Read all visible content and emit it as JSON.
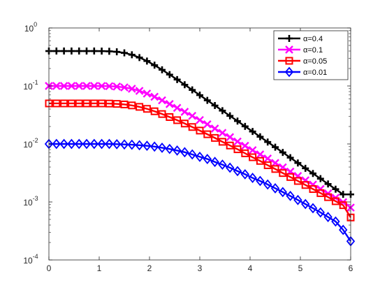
{
  "chart_data": {
    "type": "line",
    "x": [
      0,
      0.15,
      0.3,
      0.45,
      0.6,
      0.75,
      0.9,
      1.05,
      1.2,
      1.35,
      1.5,
      1.65,
      1.8,
      1.95,
      2.1,
      2.25,
      2.4,
      2.55,
      2.7,
      2.85,
      3.0,
      3.15,
      3.3,
      3.45,
      3.6,
      3.75,
      3.9,
      4.05,
      4.2,
      4.35,
      4.5,
      4.65,
      4.8,
      4.95,
      5.1,
      5.25,
      5.4,
      5.55,
      5.7,
      5.85,
      6.0
    ],
    "series": [
      {
        "name": "α=0.4",
        "color": "#000000",
        "marker": "plus",
        "values": [
          0.4,
          0.4,
          0.4,
          0.4,
          0.4,
          0.4,
          0.4,
          0.399,
          0.396,
          0.388,
          0.372,
          0.345,
          0.309,
          0.269,
          0.228,
          0.19,
          0.157,
          0.129,
          0.105,
          0.0855,
          0.0695,
          0.0565,
          0.046,
          0.0375,
          0.0305,
          0.0248,
          0.0201,
          0.0164,
          0.0133,
          0.0108,
          0.0088,
          0.00715,
          0.0058,
          0.0047,
          0.0038,
          0.0031,
          0.00252,
          0.00204,
          0.00166,
          0.00135,
          0.00135
        ]
      },
      {
        "name": "α=0.1",
        "color": "#ff00ff",
        "marker": "x",
        "values": [
          0.1,
          0.1,
          0.1,
          0.1,
          0.1,
          0.1,
          0.1,
          0.0999,
          0.0992,
          0.0976,
          0.0945,
          0.0895,
          0.0822,
          0.0738,
          0.065,
          0.0565,
          0.0488,
          0.0419,
          0.0358,
          0.0305,
          0.0258,
          0.0218,
          0.0184,
          0.0155,
          0.0131,
          0.011,
          0.0093,
          0.0078,
          0.0066,
          0.0056,
          0.0047,
          0.00395,
          0.00333,
          0.0028,
          0.00236,
          0.00199,
          0.00167,
          0.0014,
          0.00118,
          0.00099,
          0.0008
        ]
      },
      {
        "name": "α=0.05",
        "color": "#ff0000",
        "marker": "square",
        "values": [
          0.05,
          0.05,
          0.05,
          0.05,
          0.05,
          0.05,
          0.05,
          0.05,
          0.0497,
          0.0491,
          0.048,
          0.0462,
          0.0436,
          0.0403,
          0.0366,
          0.0328,
          0.0291,
          0.0257,
          0.0225,
          0.0196,
          0.017,
          0.0147,
          0.0127,
          0.0109,
          0.0094,
          0.0081,
          0.0069,
          0.0059,
          0.0051,
          0.0043,
          0.0037,
          0.00315,
          0.00269,
          0.0023,
          0.00196,
          0.00167,
          0.00142,
          0.00121,
          0.00103,
          0.00088,
          0.00054
        ]
      },
      {
        "name": "α=0.01",
        "color": "#0000ff",
        "marker": "diamond",
        "values": [
          0.01,
          0.01,
          0.01,
          0.01,
          0.01,
          0.01,
          0.01,
          0.01,
          0.01,
          0.0099,
          0.0098,
          0.0097,
          0.0095,
          0.0093,
          0.009,
          0.0086,
          0.0082,
          0.0077,
          0.0072,
          0.0066,
          0.006,
          0.0055,
          0.0049,
          0.0044,
          0.0039,
          0.0034,
          0.003,
          0.0026,
          0.0023,
          0.002,
          0.00172,
          0.00148,
          0.00127,
          0.00108,
          0.00092,
          0.00078,
          0.00066,
          0.00055,
          0.00046,
          0.00033,
          0.00021
        ]
      }
    ],
    "xlim": [
      0,
      6
    ],
    "ylim": [
      0.0001,
      1
    ],
    "yscale": "log",
    "xticks": [
      "0",
      "1",
      "2",
      "3",
      "4",
      "5",
      "6"
    ],
    "yticks": [
      {
        "base": "10",
        "exp": "0"
      },
      {
        "base": "10",
        "exp": "-1"
      },
      {
        "base": "10",
        "exp": "-2"
      },
      {
        "base": "10",
        "exp": "-3"
      },
      {
        "base": "10",
        "exp": "-4"
      }
    ],
    "title": "",
    "xlabel": "",
    "ylabel": "",
    "legend_position": "top-right",
    "grid": false
  }
}
